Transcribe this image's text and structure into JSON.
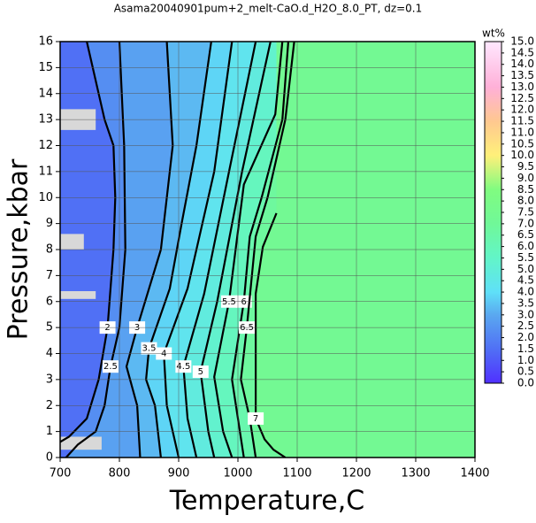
{
  "chart_data": {
    "type": "contour",
    "title": "Asama20040901pum+2_melt-CaO.d_H2O_8.0_PT, dz=0.1",
    "xlabel": "Temperature,C",
    "ylabel": "Pressure,kbar",
    "xlim": [
      700,
      1400
    ],
    "xticks": [
      700,
      800,
      900,
      1000,
      1100,
      1200,
      1300,
      1400
    ],
    "ylim": [
      0,
      16
    ],
    "yticks": [
      0,
      1,
      2,
      3,
      4,
      5,
      6,
      7,
      8,
      9,
      10,
      11,
      12,
      13,
      14,
      15,
      16
    ],
    "grid": true,
    "contours": [
      {
        "level": 2,
        "x": [
          745,
          775,
          790,
          793,
          790,
          780,
          765,
          745,
          715,
          700
        ],
        "y": [
          16,
          13,
          12,
          10,
          8,
          5,
          3,
          1.5,
          0.8,
          0.6
        ]
      },
      {
        "level": 2.5,
        "x": [
          800,
          808,
          810,
          800,
          785,
          775,
          760,
          730,
          710
        ],
        "y": [
          16,
          12,
          8,
          5,
          3.5,
          2,
          1,
          0.5,
          0
        ]
      },
      {
        "level": 3,
        "x": [
          880,
          890,
          870,
          830,
          812,
          830,
          835
        ],
        "y": [
          16,
          12,
          8,
          5,
          3.5,
          2,
          0
        ]
      },
      {
        "level": 3.5,
        "x": [
          955,
          930,
          905,
          885,
          850,
          845,
          860,
          870
        ],
        "y": [
          16,
          12,
          9,
          6.5,
          4.2,
          3,
          2,
          0
        ]
      },
      {
        "level": 4,
        "x": [
          990,
          960,
          915,
          875,
          880,
          900
        ],
        "y": [
          16,
          11,
          6.5,
          4,
          2,
          0
        ]
      },
      {
        "level": 4.5,
        "x": [
          1030,
          985,
          943,
          908,
          915,
          930
        ],
        "y": [
          16,
          11,
          6.3,
          3.5,
          1.5,
          0
        ]
      },
      {
        "level": 5,
        "x": [
          1055,
          1007,
          965,
          937,
          950,
          960
        ],
        "y": [
          16,
          11,
          6,
          3.3,
          1,
          0
        ]
      },
      {
        "level": 5.5,
        "x": [
          1075,
          1063,
          1010,
          985,
          960,
          975,
          990
        ],
        "y": [
          16,
          13.2,
          10.5,
          6,
          3.1,
          1,
          0
        ]
      },
      {
        "level": 6,
        "x": [
          1085,
          1075,
          1040,
          1020,
          1010,
          990,
          1000,
          1010
        ],
        "y": [
          16,
          13,
          10,
          8.5,
          6,
          3,
          1.5,
          0
        ]
      },
      {
        "level": 6.5,
        "x": [
          1095,
          1080,
          1050,
          1030,
          1015,
          1005,
          1020,
          1030
        ],
        "y": [
          16,
          13,
          10,
          8.5,
          5,
          3,
          1.5,
          0
        ]
      },
      {
        "level": 7,
        "x": [
          1065,
          1042,
          1030,
          1030,
          1030,
          1045,
          1060,
          1080
        ],
        "y": [
          9.4,
          8.1,
          6.3,
          3.9,
          1.5,
          0.7,
          0.3,
          0
        ]
      }
    ],
    "colorbar": {
      "label": "wt%",
      "lim": [
        0,
        15
      ],
      "ticks": [
        {
          "value": 0,
          "label": "0.0"
        },
        {
          "value": 0.5,
          "label": "0.5"
        },
        {
          "value": 1,
          "label": "1.0"
        },
        {
          "value": 1.5,
          "label": "1.5"
        },
        {
          "value": 2,
          "label": "2.0"
        },
        {
          "value": 2.5,
          "label": "2.5"
        },
        {
          "value": 3,
          "label": "3.0"
        },
        {
          "value": 3.5,
          "label": "3.5"
        },
        {
          "value": 4,
          "label": "4.0"
        },
        {
          "value": 4.5,
          "label": "4.5"
        },
        {
          "value": 5,
          "label": "5.0"
        },
        {
          "value": 5.5,
          "label": "5.5"
        },
        {
          "value": 6,
          "label": "6.0"
        },
        {
          "value": 6.5,
          "label": "6.5"
        },
        {
          "value": 7,
          "label": "7.0"
        },
        {
          "value": 7.5,
          "label": "7.5"
        },
        {
          "value": 8,
          "label": "8.0"
        },
        {
          "value": 8.5,
          "label": "8.5"
        },
        {
          "value": 9,
          "label": "9.0"
        },
        {
          "value": 9.5,
          "label": "9.5"
        },
        {
          "value": 10,
          "label": "10.0"
        },
        {
          "value": 10.5,
          "label": "10.5"
        },
        {
          "value": 11,
          "label": "11.0"
        },
        {
          "value": 11.5,
          "label": "11.5"
        },
        {
          "value": 12,
          "label": "12.0"
        },
        {
          "value": 12.5,
          "label": "12.5"
        },
        {
          "value": 13,
          "label": "13.0"
        },
        {
          "value": 13.5,
          "label": "13.5"
        },
        {
          "value": 14,
          "label": "14.0"
        },
        {
          "value": 14.5,
          "label": "14.5"
        },
        {
          "value": 15,
          "label": "15.0"
        }
      ],
      "stops": [
        {
          "value": 0,
          "color": "#5030ff"
        },
        {
          "value": 1.5,
          "color": "#5070f5"
        },
        {
          "value": 3,
          "color": "#5aa8f0"
        },
        {
          "value": 4,
          "color": "#5fe0f8"
        },
        {
          "value": 5.5,
          "color": "#62f5c8"
        },
        {
          "value": 7,
          "color": "#70f898"
        },
        {
          "value": 8.5,
          "color": "#80fc80"
        },
        {
          "value": 10,
          "color": "#fff07a"
        },
        {
          "value": 11.5,
          "color": "#ffc890"
        },
        {
          "value": 13,
          "color": "#ffb0d8"
        },
        {
          "value": 15,
          "color": "#ffe8ff"
        }
      ]
    }
  }
}
